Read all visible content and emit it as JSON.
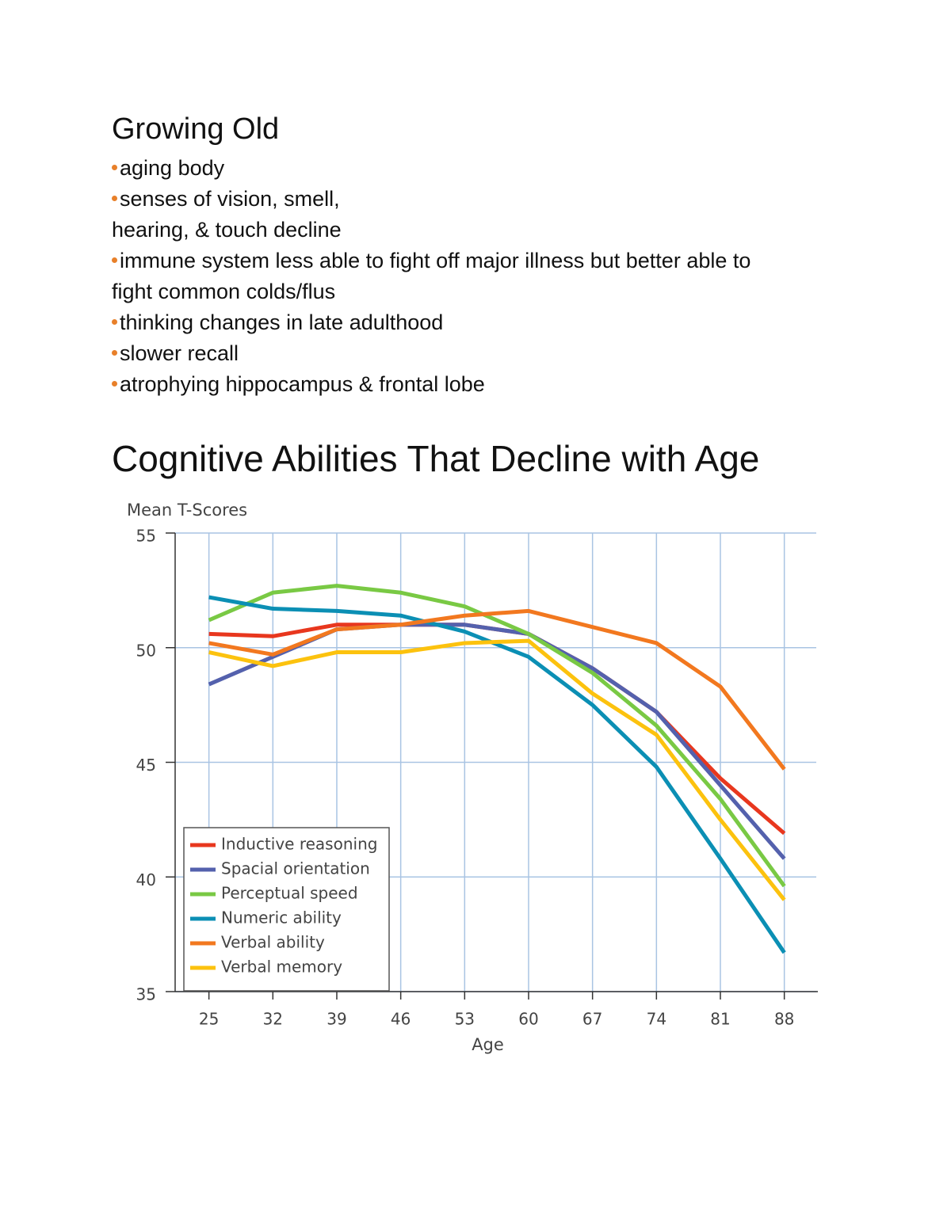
{
  "header": {
    "title": "Growing Old"
  },
  "bullets": [
    {
      "lines": [
        "aging body"
      ]
    },
    {
      "lines": [
        "senses of vision, smell,",
        "hearing, & touch decline"
      ]
    },
    {
      "lines": [
        "immune system less able to fight off major illness but better able to",
        "fight common colds/flus"
      ]
    },
    {
      "lines": [
        "thinking changes in late adulthood"
      ]
    },
    {
      "lines": [
        "slower recall"
      ]
    },
    {
      "lines": [
        "atrophying hippocampus & frontal lobe"
      ]
    }
  ],
  "section": {
    "title": "Cognitive Abilities That Decline with Age"
  },
  "chart_data": {
    "type": "line",
    "y_label": "Mean T-Scores",
    "x_label": "Age",
    "x": [
      25,
      32,
      39,
      46,
      53,
      60,
      67,
      74,
      81,
      88
    ],
    "xlim": [
      21.3,
      91.5
    ],
    "xticks": [
      25,
      32,
      39,
      46,
      53,
      60,
      67,
      74,
      81,
      88
    ],
    "ylim": [
      35,
      55
    ],
    "yticks": [
      35,
      40,
      45,
      50,
      55
    ],
    "grid": true,
    "legend": "lower left",
    "series": [
      {
        "name": "Inductive reasoning",
        "color": "#e8371e",
        "values": [
          50.6,
          50.5,
          51.0,
          51.0,
          51.0,
          50.6,
          49.1,
          47.2,
          44.3,
          41.9
        ]
      },
      {
        "name": "Spacial orientation",
        "color": "#5461ad",
        "values": [
          48.4,
          49.6,
          50.8,
          51.0,
          51.0,
          50.6,
          49.1,
          47.2,
          44.0,
          40.8
        ]
      },
      {
        "name": "Perceptual speed",
        "color": "#79c944",
        "values": [
          51.2,
          52.4,
          52.7,
          52.4,
          51.8,
          50.6,
          48.9,
          46.6,
          43.4,
          39.6
        ]
      },
      {
        "name": "Numeric ability",
        "color": "#0b8fb4",
        "values": [
          52.2,
          51.7,
          51.6,
          51.4,
          50.7,
          49.6,
          47.5,
          44.8,
          40.8,
          36.7
        ]
      },
      {
        "name": "Verbal ability",
        "color": "#f2781f",
        "values": [
          50.2,
          49.7,
          50.8,
          51.0,
          51.4,
          51.6,
          50.9,
          50.2,
          48.3,
          44.7
        ]
      },
      {
        "name": "Verbal memory",
        "color": "#fcc20e",
        "values": [
          49.8,
          49.2,
          49.8,
          49.8,
          50.2,
          50.3,
          48.0,
          46.2,
          42.5,
          39.0
        ]
      }
    ]
  }
}
